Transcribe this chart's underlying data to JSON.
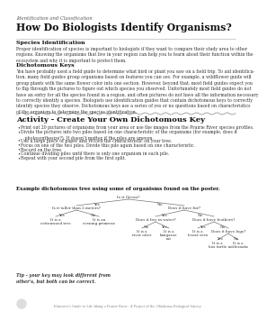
{
  "title_small": "Identification and Classification",
  "title_large": "How Do Biologists Identify Organisms?",
  "section1_title": "Species Identification",
  "section1_body1": "Proper identification of species is important to biologists if they want to compare their study area to other",
  "section1_body2": "regions. Knowing the organisms that live in your region can help you to learn about their function within the",
  "section1_body3": "ecosystem and why it is important to protect them.",
  "section2_title": "Dichotomous Keys",
  "section2_body": "You have probably used a field guide to determine what bird or plant you saw on a field trip. To aid identifica-\ntion, many field guides group organisms based on features you can see. For example, a wildflower guide will\ngroup plants with the same flower color into one section. However, beyond that, most field guides expect you\nto flip through the pictures to figure out which species you observed. Unfortunately most field guides do not\nhave an entry for all the species found in a region, and often pictures do not have all the information necessary\nto correctly identify a species. Biologists use identification guides that contain dichotomous keys to correctly\nidentify species they observe. Dichotomous keys use a series of yes or no questions based on characteristics\nof the organism to determine the species identification.",
  "activity_title": "Activity - Create Your Own Dichotomous Key",
  "bullets": [
    "Print out 20 pictures of organisms from your area or use the images from the Prairie River species profiles.",
    "Divide the pictures into two piles based on one characteristic of the organisms (for example, does it\n   photosynthesize?). It doesn’t matter if the piles are uneven.",
    "Use a large piece of paper and record the characteristic on your tree.",
    "Focus on one of the two piles. Divide this pile again based on one characteristic.",
    "Record on the tree.",
    "Continue dividing piles until there is only one organism in each pile.",
    "Repeat with your second pile from the first split."
  ],
  "example_label": "Example dichotomous tree using some of organisms found on the poster.",
  "tip_text": "Tip - your key may look different from\nother's, but both can be correct.",
  "footer_text": "Educator's Guide to Life Along a Prairie River - A Project of the Oklahoma Biological Survey",
  "bg_color": "#ffffff",
  "serif": "DejaVu Serif"
}
